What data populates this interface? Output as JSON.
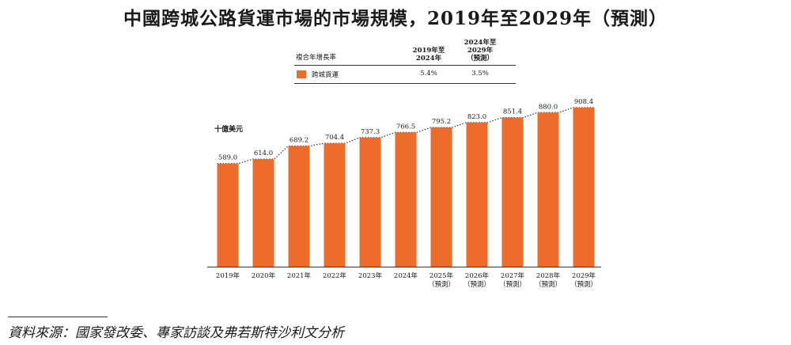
{
  "title": "中國跨城公路貨運市場的市場規模，2019年至2029年（預測）",
  "cagr_table": {
    "header_label": "複合年增長率",
    "col1_header": [
      "2019年至",
      "2024年"
    ],
    "col2_header": [
      "2024年至2029年",
      "（預測）"
    ],
    "row": {
      "series": "跨城貨運",
      "col1": "5.4%",
      "col2": "3.5%"
    }
  },
  "unit_label": "十億美元",
  "source": "資料來源：國家發改委、專家訪談及弗若斯特沙利文分析",
  "colors": {
    "bar": "#ee6b2a",
    "text": "#1a1a1a"
  },
  "chart_data": {
    "type": "bar",
    "categories": [
      "2019年",
      "2020年",
      "2021年",
      "2022年",
      "2023年",
      "2024年",
      "2025年",
      "2026年",
      "2027年",
      "2028年",
      "2029年"
    ],
    "forecast_note": "（預測）",
    "forecast_from_index": 6,
    "values": [
      589.0,
      614.0,
      689.2,
      704.4,
      737.3,
      766.5,
      795.2,
      823.0,
      851.4,
      880.0,
      908.4
    ],
    "value_labels": [
      "589.0",
      "614.0",
      "689.2",
      "704.4",
      "737.3",
      "766.5",
      "795.2",
      "823.0",
      "851.4",
      "880.0",
      "908.4"
    ],
    "ylabel": "十億美元",
    "ylim": [
      0,
      908.4
    ],
    "grid": false,
    "connector_line": "dotted"
  }
}
